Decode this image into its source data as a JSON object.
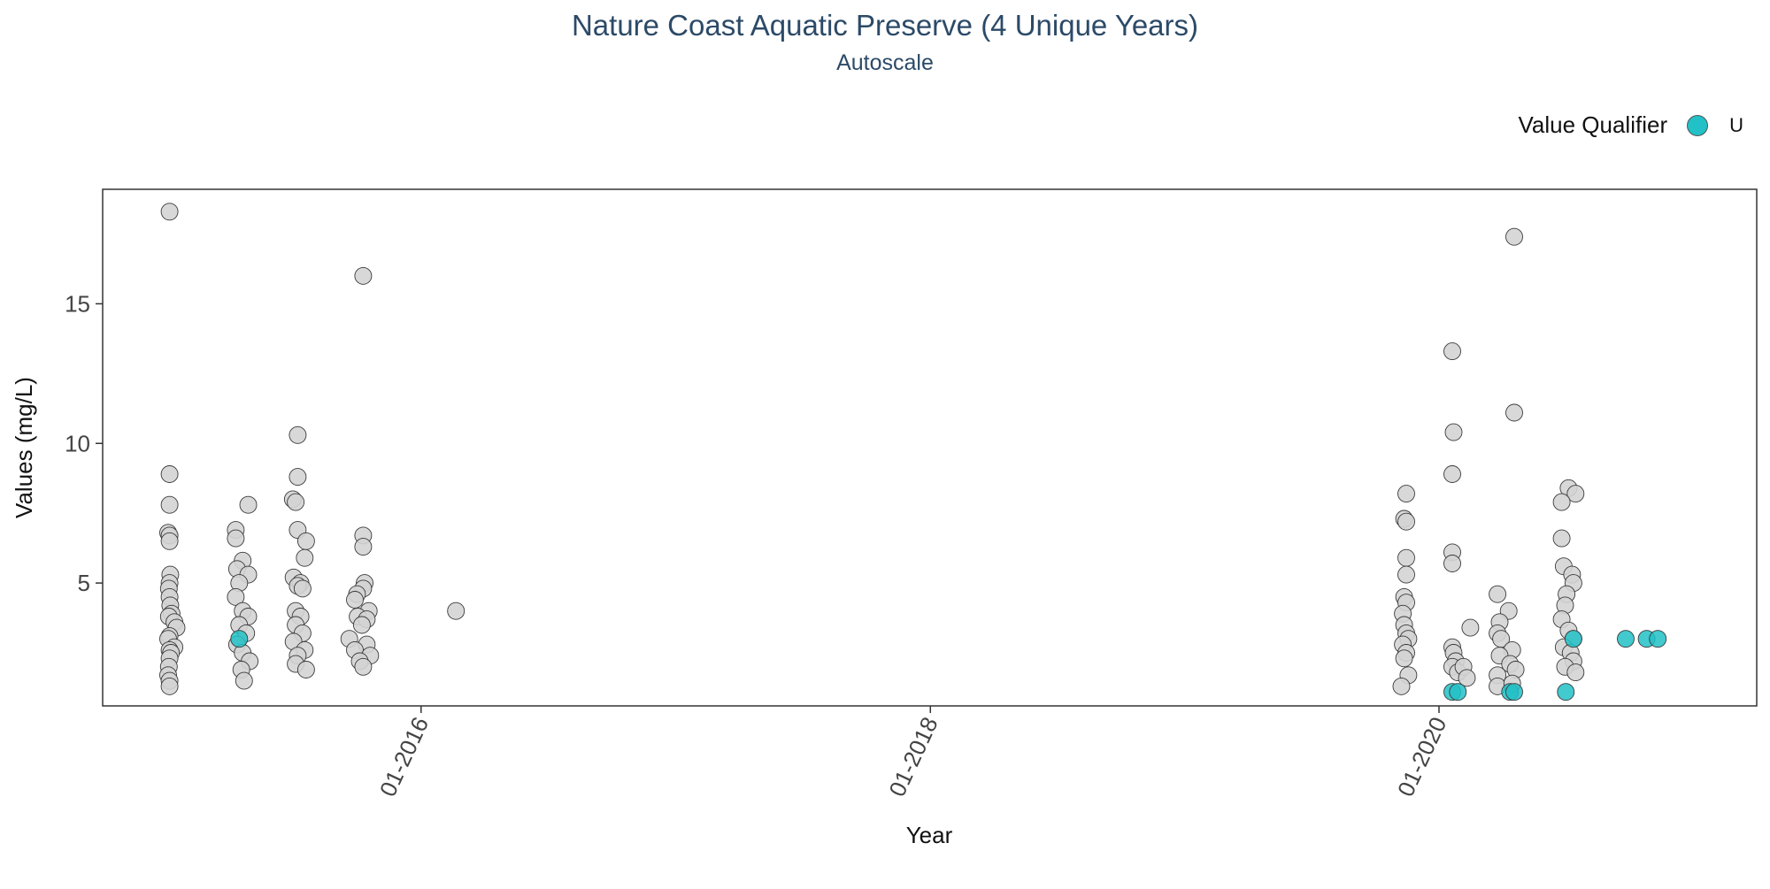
{
  "chart_data": {
    "type": "scatter",
    "title": "Nature Coast Aquatic Preserve (4 Unique Years)",
    "subtitle": "Autoscale",
    "xlabel": "Year",
    "ylabel": "Values (mg/L)",
    "x_axis_type": "date",
    "xlim": [
      "2014-10-01",
      "2021-04-01"
    ],
    "ylim": [
      0.6,
      19.1
    ],
    "x_ticks": [
      {
        "date": "2016-01-01",
        "label": "01-2016"
      },
      {
        "date": "2018-01-01",
        "label": "01-2018"
      },
      {
        "date": "2020-01-01",
        "label": "01-2020"
      }
    ],
    "y_ticks": [
      5,
      10,
      15
    ],
    "grid": false,
    "legend": {
      "title": "Value Qualifier",
      "position": "top-right",
      "entries": [
        {
          "label": "U",
          "color": "#21c1c7"
        }
      ]
    },
    "colors": {
      "default_point": "#d4d4d4",
      "qualified_point": "#21c1c7",
      "point_stroke": "#3a3a3a",
      "title": "#2c4a68"
    },
    "series": [
      {
        "qualifier": "",
        "points": [
          [
            "2015-01-05",
            18.3
          ],
          [
            "2015-01-05",
            8.9
          ],
          [
            "2015-01-05",
            7.8
          ],
          [
            "2015-01-03",
            6.8
          ],
          [
            "2015-01-05",
            6.7
          ],
          [
            "2015-01-05",
            6.5
          ],
          [
            "2015-01-06",
            5.3
          ],
          [
            "2015-01-05",
            5.0
          ],
          [
            "2015-01-04",
            4.8
          ],
          [
            "2015-01-05",
            4.5
          ],
          [
            "2015-01-06",
            4.2
          ],
          [
            "2015-01-08",
            3.9
          ],
          [
            "2015-01-04",
            3.8
          ],
          [
            "2015-01-12",
            3.6
          ],
          [
            "2015-01-15",
            3.4
          ],
          [
            "2015-01-05",
            3.1
          ],
          [
            "2015-01-03",
            3.0
          ],
          [
            "2015-01-12",
            2.7
          ],
          [
            "2015-01-05",
            2.6
          ],
          [
            "2015-01-07",
            2.5
          ],
          [
            "2015-01-05",
            2.3
          ],
          [
            "2015-01-04",
            2.0
          ],
          [
            "2015-01-03",
            1.7
          ],
          [
            "2015-01-05",
            1.5
          ],
          [
            "2015-01-05",
            1.3
          ],
          [
            "2015-04-10",
            6.9
          ],
          [
            "2015-04-10",
            6.6
          ],
          [
            "2015-04-20",
            5.8
          ],
          [
            "2015-04-12",
            5.5
          ],
          [
            "2015-04-28",
            5.3
          ],
          [
            "2015-04-15",
            5.0
          ],
          [
            "2015-04-10",
            4.5
          ],
          [
            "2015-04-20",
            4.0
          ],
          [
            "2015-04-28",
            3.8
          ],
          [
            "2015-04-15",
            3.5
          ],
          [
            "2015-04-25",
            3.2
          ],
          [
            "2015-04-12",
            2.8
          ],
          [
            "2015-04-20",
            2.5
          ],
          [
            "2015-04-30",
            2.2
          ],
          [
            "2015-04-18",
            1.9
          ],
          [
            "2015-04-22",
            1.5
          ],
          [
            "2015-04-28",
            7.8
          ],
          [
            "2015-07-08",
            10.3
          ],
          [
            "2015-07-08",
            8.8
          ],
          [
            "2015-07-01",
            8.0
          ],
          [
            "2015-07-05",
            7.9
          ],
          [
            "2015-07-08",
            6.9
          ],
          [
            "2015-07-20",
            6.5
          ],
          [
            "2015-07-18",
            5.9
          ],
          [
            "2015-07-02",
            5.2
          ],
          [
            "2015-07-12",
            5.0
          ],
          [
            "2015-07-08",
            4.9
          ],
          [
            "2015-07-15",
            4.8
          ],
          [
            "2015-07-05",
            4.0
          ],
          [
            "2015-07-12",
            3.8
          ],
          [
            "2015-07-05",
            3.5
          ],
          [
            "2015-07-15",
            3.2
          ],
          [
            "2015-07-02",
            2.9
          ],
          [
            "2015-07-18",
            2.6
          ],
          [
            "2015-07-08",
            2.4
          ],
          [
            "2015-07-05",
            2.1
          ],
          [
            "2015-07-20",
            1.9
          ],
          [
            "2015-10-10",
            16.0
          ],
          [
            "2015-10-10",
            6.7
          ],
          [
            "2015-10-10",
            6.3
          ],
          [
            "2015-10-12",
            5.0
          ],
          [
            "2015-10-10",
            4.8
          ],
          [
            "2015-10-01",
            4.6
          ],
          [
            "2015-09-28",
            4.4
          ],
          [
            "2015-10-18",
            4.0
          ],
          [
            "2015-10-02",
            3.8
          ],
          [
            "2015-10-15",
            3.7
          ],
          [
            "2015-10-08",
            3.5
          ],
          [
            "2015-09-20",
            3.0
          ],
          [
            "2015-10-15",
            2.8
          ],
          [
            "2015-09-28",
            2.6
          ],
          [
            "2015-10-20",
            2.4
          ],
          [
            "2015-10-05",
            2.2
          ],
          [
            "2015-10-10",
            2.0
          ],
          [
            "2016-02-20",
            4.0
          ],
          [
            "2019-11-15",
            8.2
          ],
          [
            "2019-11-12",
            7.3
          ],
          [
            "2019-11-15",
            7.2
          ],
          [
            "2019-11-15",
            5.9
          ],
          [
            "2019-11-15",
            5.3
          ],
          [
            "2019-11-12",
            4.5
          ],
          [
            "2019-11-15",
            4.3
          ],
          [
            "2019-11-10",
            3.9
          ],
          [
            "2019-11-12",
            3.5
          ],
          [
            "2019-11-15",
            3.2
          ],
          [
            "2019-11-18",
            3.0
          ],
          [
            "2019-11-10",
            2.8
          ],
          [
            "2019-11-15",
            2.5
          ],
          [
            "2019-11-12",
            2.3
          ],
          [
            "2019-11-18",
            1.7
          ],
          [
            "2019-11-08",
            1.3
          ],
          [
            "2020-01-20",
            13.3
          ],
          [
            "2020-01-22",
            10.4
          ],
          [
            "2020-01-20",
            8.9
          ],
          [
            "2020-01-20",
            6.1
          ],
          [
            "2020-01-20",
            5.7
          ],
          [
            "2020-01-20",
            2.7
          ],
          [
            "2020-01-22",
            2.5
          ],
          [
            "2020-01-25",
            2.2
          ],
          [
            "2020-01-20",
            2.0
          ],
          [
            "2020-01-28",
            1.8
          ],
          [
            "2020-02-05",
            2.0
          ],
          [
            "2020-02-15",
            3.4
          ],
          [
            "2020-02-10",
            1.6
          ],
          [
            "2020-04-18",
            17.4
          ],
          [
            "2020-04-18",
            11.1
          ],
          [
            "2020-03-25",
            4.6
          ],
          [
            "2020-04-10",
            4.0
          ],
          [
            "2020-03-28",
            3.6
          ],
          [
            "2020-03-25",
            3.2
          ],
          [
            "2020-03-30",
            3.0
          ],
          [
            "2020-04-15",
            2.6
          ],
          [
            "2020-03-28",
            2.4
          ],
          [
            "2020-04-12",
            2.1
          ],
          [
            "2020-04-20",
            1.9
          ],
          [
            "2020-03-25",
            1.7
          ],
          [
            "2020-03-25",
            1.3
          ],
          [
            "2020-04-15",
            1.4
          ],
          [
            "2020-07-05",
            8.4
          ],
          [
            "2020-07-15",
            8.2
          ],
          [
            "2020-06-25",
            7.9
          ],
          [
            "2020-06-25",
            6.6
          ],
          [
            "2020-06-28",
            5.6
          ],
          [
            "2020-07-10",
            5.3
          ],
          [
            "2020-07-12",
            5.0
          ],
          [
            "2020-07-02",
            4.6
          ],
          [
            "2020-06-30",
            4.2
          ],
          [
            "2020-06-25",
            3.7
          ],
          [
            "2020-07-05",
            3.3
          ],
          [
            "2020-07-12",
            3.0
          ],
          [
            "2020-06-28",
            2.7
          ],
          [
            "2020-07-08",
            2.5
          ],
          [
            "2020-07-12",
            2.2
          ],
          [
            "2020-06-30",
            2.0
          ],
          [
            "2020-07-15",
            1.8
          ]
        ]
      },
      {
        "qualifier": "U",
        "points": [
          [
            "2015-04-15",
            3.0
          ],
          [
            "2020-01-20",
            1.1
          ],
          [
            "2020-01-28",
            1.1
          ],
          [
            "2020-04-12",
            1.1
          ],
          [
            "2020-04-18",
            1.1
          ],
          [
            "2020-07-12",
            3.0
          ],
          [
            "2020-07-01",
            1.1
          ],
          [
            "2020-09-25",
            3.0
          ],
          [
            "2020-10-25",
            3.0
          ],
          [
            "2020-11-10",
            3.0
          ]
        ]
      }
    ]
  }
}
